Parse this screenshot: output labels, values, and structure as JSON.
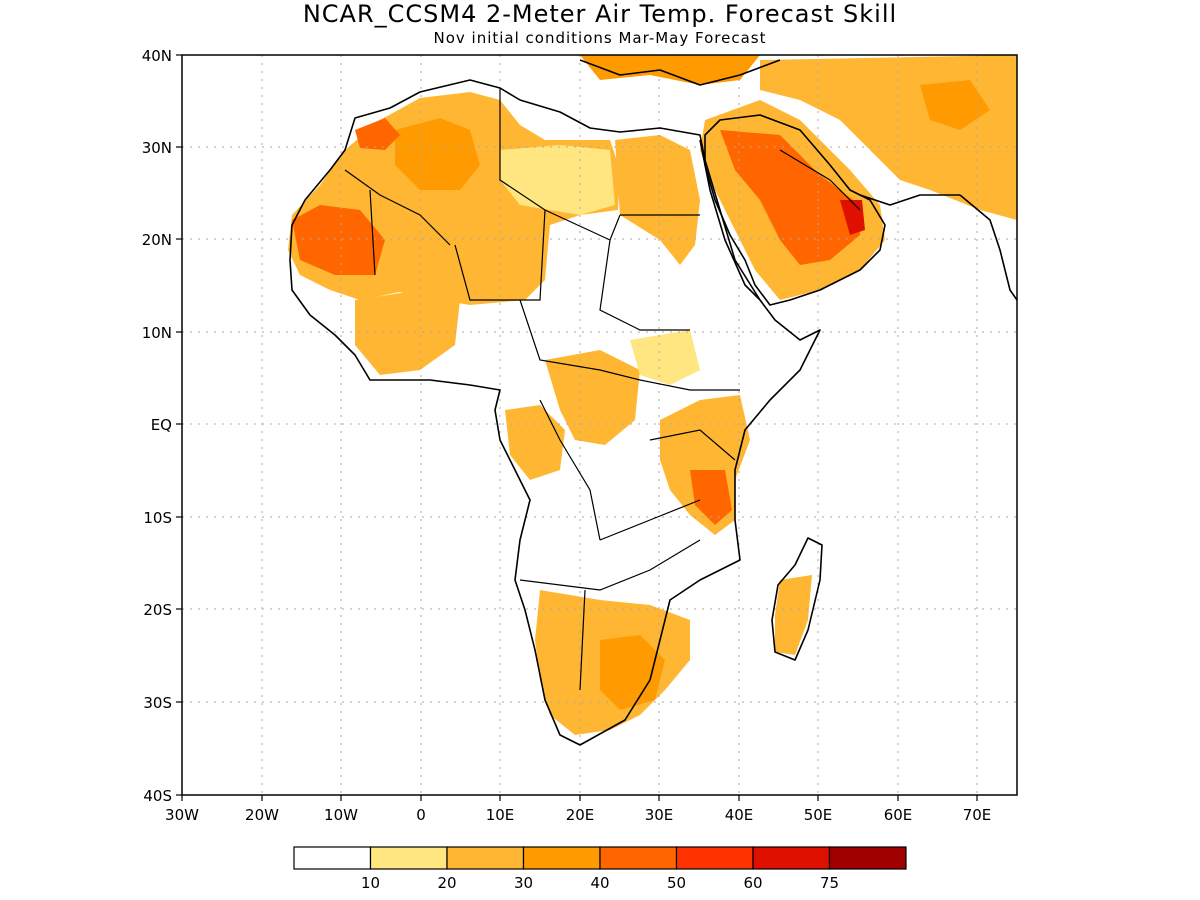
{
  "title": "NCAR_CCSM4 2-Meter Air Temp. Forecast Skill",
  "subtitle": "Nov initial conditions  Mar-May Forecast",
  "map": {
    "lon_range": [
      -30,
      75
    ],
    "lat_range": [
      -40,
      40
    ],
    "lat_labels": [
      "40N",
      "30N",
      "20N",
      "10N",
      "EQ",
      "10S",
      "20S",
      "30S",
      "40S"
    ],
    "lon_labels": [
      "30W",
      "20W",
      "10W",
      "0",
      "10E",
      "20E",
      "30E",
      "40E",
      "50E",
      "60E",
      "70E"
    ],
    "grid": "dotted"
  },
  "legend": {
    "labels": [
      "10",
      "20",
      "30",
      "40",
      "50",
      "60",
      "75"
    ],
    "colors": [
      "#ffffff",
      "#ffe680",
      "#ffb733",
      "#ff9a00",
      "#ff6600",
      "#ff3300",
      "#e01000",
      "#a00000"
    ]
  }
}
